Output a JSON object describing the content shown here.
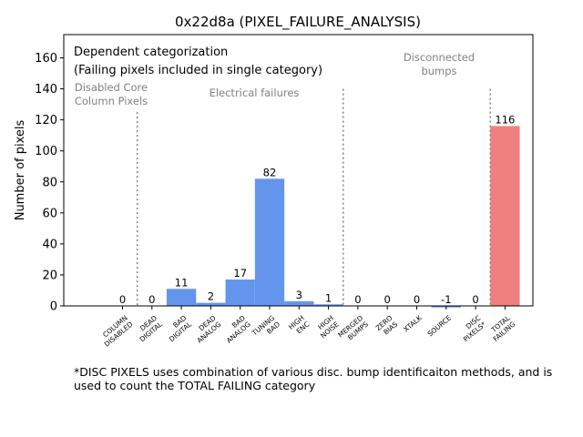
{
  "chart_data": {
    "type": "bar",
    "title": "0x22d8a (PIXEL_FAILURE_ANALYSIS)",
    "xlabel": "",
    "ylabel": "Number of pixels",
    "ylim": [
      0,
      175
    ],
    "yticks": [
      0,
      20,
      40,
      60,
      80,
      100,
      120,
      140,
      160
    ],
    "grid": false,
    "categories": [
      [
        "COLUMN",
        "DISABLED"
      ],
      [
        "DEAD",
        "DIGITAL"
      ],
      [
        "BAD",
        "DIGITAL"
      ],
      [
        "DEAD",
        "ANALOG"
      ],
      [
        "BAD",
        "ANALOG"
      ],
      [
        "TUNING",
        "BAD"
      ],
      [
        "HIGH",
        "ENC"
      ],
      [
        "HIGH",
        "NOISE"
      ],
      [
        "MERGED",
        "BUMPS"
      ],
      [
        "ZERO",
        "BIAS"
      ],
      [
        "XTALK"
      ],
      [
        "SOURCE"
      ],
      [
        "DISC",
        "PIXELS*"
      ],
      [
        "TOTAL",
        "FAILING"
      ]
    ],
    "values": [
      0,
      0,
      11,
      2,
      17,
      82,
      3,
      1,
      0,
      0,
      0,
      -1,
      0,
      116
    ],
    "value_labels": [
      "0",
      "0",
      "11",
      "2",
      "17",
      "82",
      "3",
      "1",
      "0",
      "0",
      "0",
      "-1",
      "0",
      "116"
    ],
    "bar_colors": [
      "#6495ed",
      "#6495ed",
      "#6495ed",
      "#6495ed",
      "#6495ed",
      "#6495ed",
      "#6495ed",
      "#6495ed",
      "#6495ed",
      "#6495ed",
      "#6495ed",
      "#6495ed",
      "#6495ed",
      "#f08080"
    ],
    "groups": [
      {
        "label": [
          "Disabled Core",
          "Column Pixels"
        ],
        "divider_after_index": 0,
        "divider_top": 125
      },
      {
        "label": [
          "Electrical failures"
        ],
        "divider_after_index": 7,
        "divider_top": 140
      },
      {
        "label": [
          "Disconnected",
          "bumps"
        ],
        "divider_after_index": 12,
        "divider_top": 140
      }
    ],
    "legend_text": [
      "Dependent categorization",
      "(Failing pixels included in single category)"
    ],
    "footnote": [
      "*DISC PIXELS uses combination of various disc. bump identificaiton methods, and is",
      "used to count the TOTAL FAILING category"
    ]
  },
  "colors": {
    "bar_blue": "#6495ed",
    "bar_total": "#f08080",
    "group_text": "#808080",
    "divider": "#808080"
  }
}
